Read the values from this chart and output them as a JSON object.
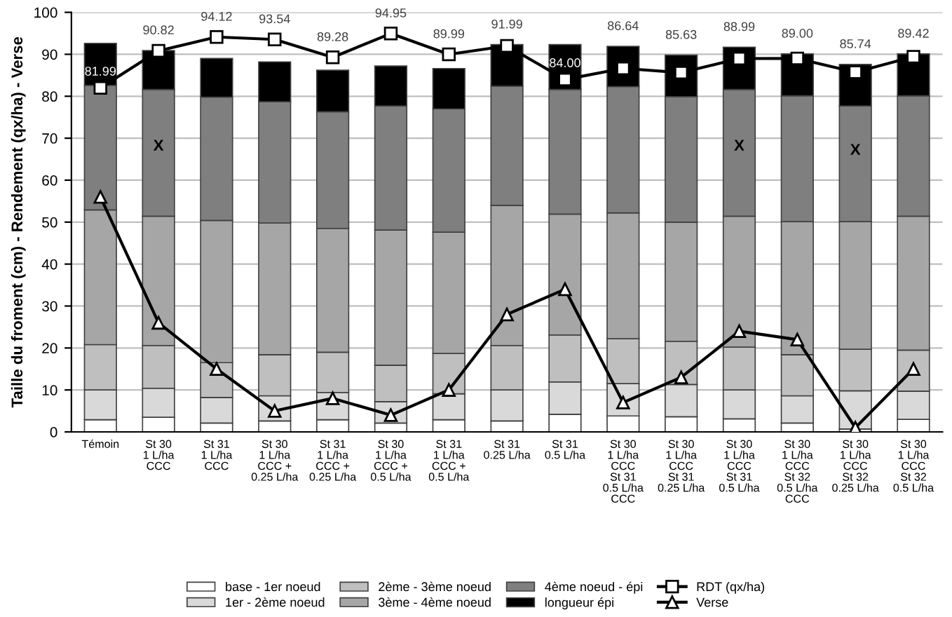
{
  "chart_data": {
    "type": "bar",
    "stacked": true,
    "ylabel": "Taille du froment (cm) - Rendement (qx/ha) - Verse",
    "categories": [
      "Témoin",
      "St 30\n1 L/ha\nCCC",
      "St 31\n1 L/ha\nCCC",
      "St 30\n1 L/ha\nCCC +\n0.25 L/ha",
      "St 31\n1 L/ha\nCCC +\n0.25 L/ha",
      "St 30\n1 L/ha\nCCC +\n0.5 L/ha",
      "St 31\n1 L/ha\nCCC +\n0.5 L/ha",
      "St 31\n0.25 L/ha",
      "St 31\n0.5 L/ha",
      "St 30\n1 L/ha\nCCC\nSt 31\n0.5 L/ha\nCCC",
      "St 30\n1 L/ha\nCCC\nSt 31\n0.25 L/ha",
      "St 30\n1 L/ha\nCCC\nSt 31\n0.5 L/ha",
      "St 30\n1 L/ha\nCCC\nSt 32\n0.5 L/ha\nCCC",
      "St 30\n1 L/ha\nCCC\nSt 32\n0.25 L/ha",
      "St 30\n1 L/ha\nCCC\nSt 32\n0.5 L/ha"
    ],
    "series": [
      {
        "name": "base - 1er noeud",
        "color": "#ffffff",
        "values": [
          2.9,
          3.5,
          2.1,
          2.6,
          2.9,
          2.1,
          2.9,
          2.6,
          4.2,
          3.8,
          3.6,
          3.1,
          2.1,
          0.7,
          3.0
        ]
      },
      {
        "name": "1er - 2ème noeud",
        "color": "#d9d9d9",
        "values": [
          7.1,
          6.9,
          6.1,
          6.0,
          6.5,
          5.1,
          6.2,
          7.4,
          7.7,
          7.7,
          7.7,
          6.9,
          6.5,
          9.1,
          6.7
        ]
      },
      {
        "name": "2ème - 3ème noeud",
        "color": "#bfbfbf",
        "values": [
          10.8,
          10.2,
          8.3,
          9.8,
          9.6,
          8.7,
          9.6,
          10.6,
          11.2,
          10.7,
          10.3,
          10.2,
          9.8,
          9.9,
          9.8
        ]
      },
      {
        "name": "3ème - 4ème noeud",
        "color": "#a6a6a6",
        "values": [
          32.1,
          30.8,
          33.9,
          31.4,
          29.5,
          32.2,
          28.9,
          33.4,
          28.8,
          30.0,
          28.4,
          31.2,
          31.7,
          30.4,
          31.9
        ]
      },
      {
        "name": "4ème noeud - épi",
        "color": "#7f7f7f",
        "values": [
          29.7,
          30.2,
          29.4,
          28.9,
          27.8,
          29.6,
          29.4,
          28.4,
          29.7,
          30.1,
          29.9,
          30.2,
          30.0,
          27.6,
          28.7
        ]
      },
      {
        "name": "longueur épi",
        "color": "#000000",
        "values": [
          10.0,
          9.3,
          9.2,
          9.5,
          9.9,
          9.5,
          9.6,
          9.9,
          10.7,
          9.6,
          9.9,
          10.1,
          10.0,
          9.9,
          10.0
        ]
      },
      {
        "name": "RDT (qx/ha)",
        "type": "line",
        "marker": "square",
        "color": "#000000",
        "values": [
          81.99,
          90.82,
          94.12,
          93.54,
          89.28,
          94.95,
          89.99,
          91.99,
          84.0,
          86.64,
          85.63,
          88.99,
          89.0,
          85.74,
          89.42
        ],
        "value_labels": [
          "81.99",
          "90.82",
          "94.12",
          "93.54",
          "89.28",
          "94.95",
          "89.99",
          "91.99",
          "84.00",
          "86.64",
          "85.63",
          "88.99",
          "89.00",
          "85.74",
          "89.42"
        ]
      },
      {
        "name": "Verse",
        "type": "line",
        "marker": "triangle",
        "color": "#000000",
        "values": [
          56,
          26,
          15,
          5,
          8,
          4,
          10,
          28,
          34,
          7,
          13,
          24,
          22,
          1,
          15
        ]
      }
    ],
    "annotations": [
      "X",
      "X",
      "X"
    ],
    "ylim": [
      0,
      100
    ],
    "yticks": [
      0,
      10,
      20,
      30,
      40,
      50,
      60,
      70,
      80,
      90,
      100
    ],
    "grid": "y",
    "legend": "bottom"
  }
}
